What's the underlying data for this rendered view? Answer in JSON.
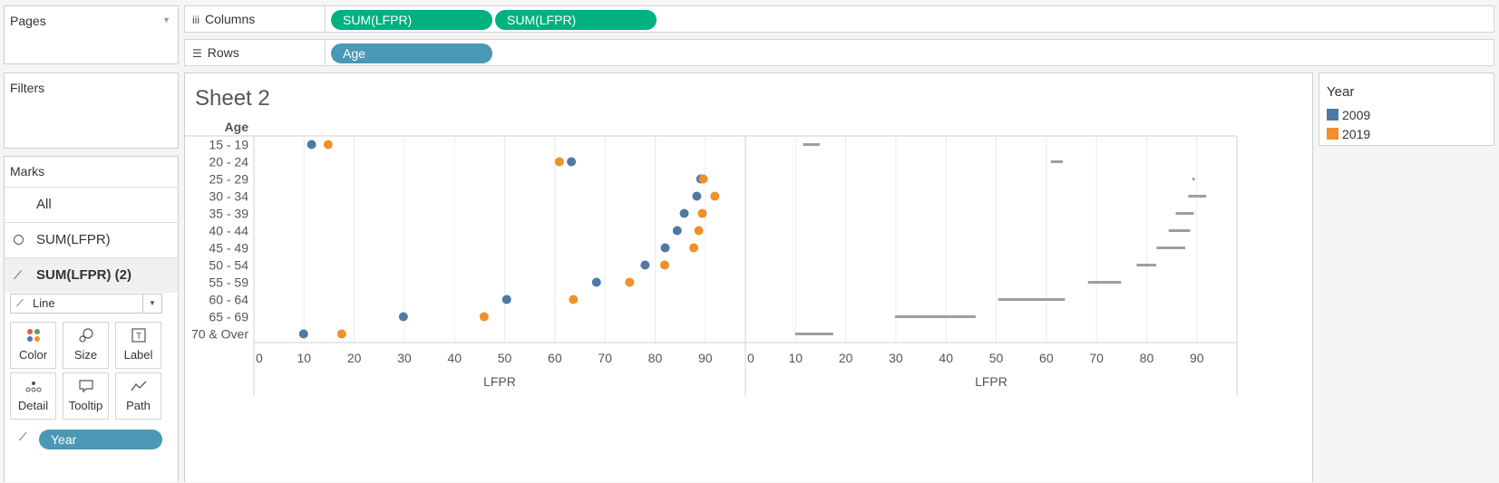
{
  "left": {
    "pages_label": "Pages",
    "filters_label": "Filters",
    "marks_label": "Marks",
    "marks_all": "All",
    "marks_sum1": "SUM(LFPR)",
    "marks_sum2": "SUM(LFPR) (2)",
    "mark_type": "Line",
    "buttons": {
      "color": "Color",
      "size": "Size",
      "label": "Label",
      "detail": "Detail",
      "tooltip": "Tooltip",
      "path": "Path"
    },
    "path_pill": "Year"
  },
  "shelves": {
    "columns_label": "Columns",
    "rows_label": "Rows",
    "columns_pills": [
      "SUM(LFPR)",
      "SUM(LFPR)"
    ],
    "rows_pill": "Age"
  },
  "sheet": {
    "title": "Sheet 2"
  },
  "legend": {
    "title": "Year",
    "items": [
      {
        "label": "2009",
        "color": "#4e79a7"
      },
      {
        "label": "2019",
        "color": "#f28e2b"
      }
    ]
  },
  "chart_data": [
    {
      "type": "scatter",
      "row_header": "Age",
      "categories": [
        "15 - 19",
        "20 - 24",
        "25 - 29",
        "30 - 34",
        "35 - 39",
        "40 - 44",
        "45 - 49",
        "50 - 54",
        "55 - 59",
        "60 - 64",
        "65 - 69",
        "70 & Over"
      ],
      "series": [
        {
          "name": "2009",
          "color": "#4e79a7",
          "values": [
            11.5,
            63.3,
            89.1,
            88.3,
            85.8,
            84.4,
            82.0,
            78.0,
            68.3,
            50.4,
            29.8,
            9.9
          ]
        },
        {
          "name": "2019",
          "color": "#f28e2b",
          "values": [
            14.8,
            60.9,
            89.6,
            91.9,
            89.4,
            88.7,
            87.7,
            81.9,
            74.9,
            63.7,
            45.9,
            17.5
          ]
        }
      ],
      "xlabel": "LFPR",
      "xticks": [
        0,
        10,
        20,
        30,
        40,
        50,
        60,
        70,
        80,
        90
      ],
      "xlim": [
        0,
        98
      ]
    },
    {
      "type": "line",
      "row_header": "Age",
      "categories": [
        "15 - 19",
        "20 - 24",
        "25 - 29",
        "30 - 34",
        "35 - 39",
        "40 - 44",
        "45 - 49",
        "50 - 54",
        "55 - 59",
        "60 - 64",
        "65 - 69",
        "70 & Over"
      ],
      "path_by": "Year",
      "color": "#9e9e9e",
      "xlabel": "LFPR",
      "xticks": [
        0,
        10,
        20,
        30,
        40,
        50,
        60,
        70,
        80,
        90
      ],
      "xlim": [
        0,
        98
      ]
    }
  ]
}
